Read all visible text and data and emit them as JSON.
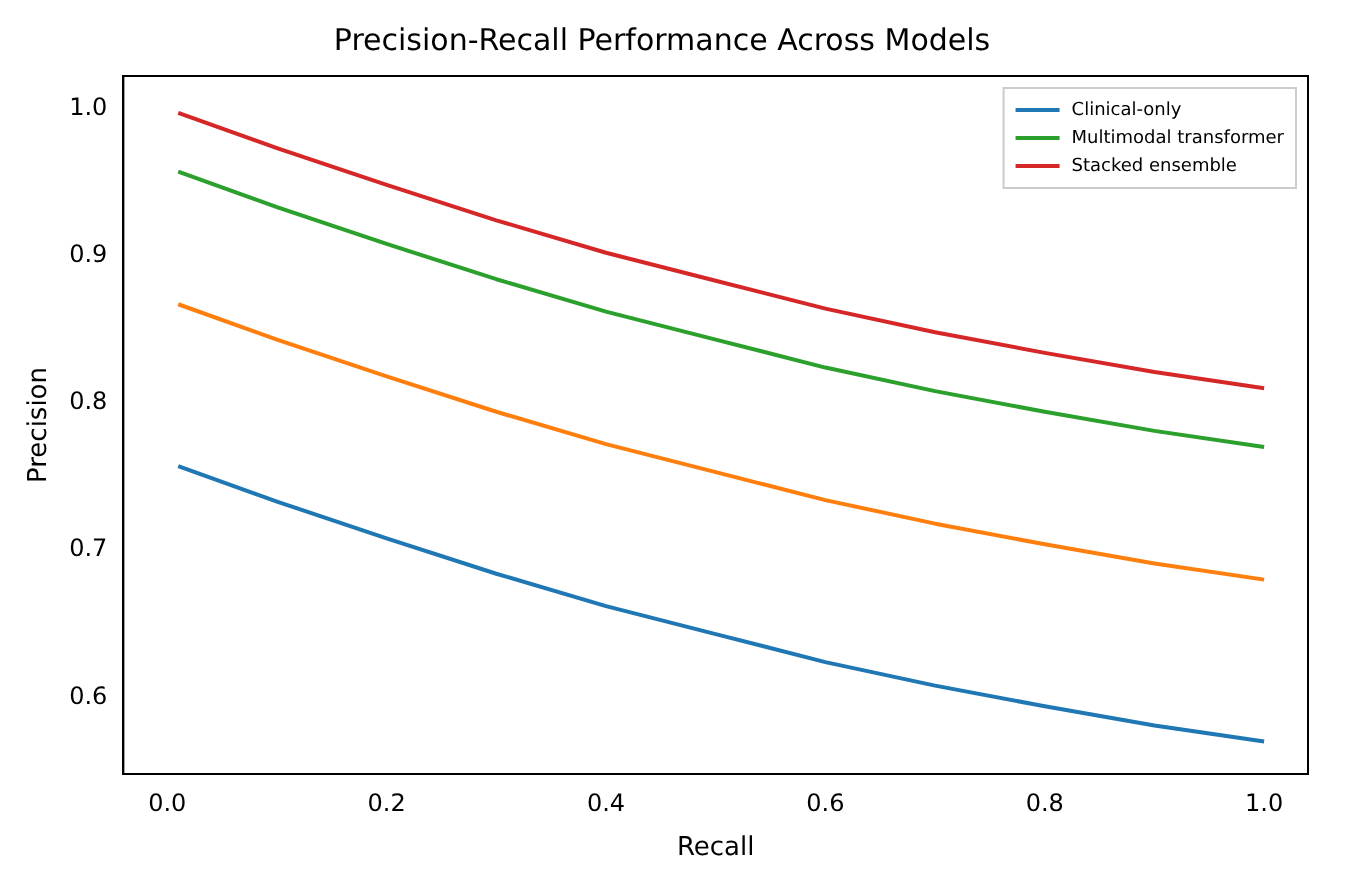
{
  "chart_data": {
    "type": "line",
    "title": "Precision-Recall Performance Across Models",
    "xlabel": "Recall",
    "ylabel": "Precision",
    "x": [
      0.01,
      0.1,
      0.2,
      0.3,
      0.4,
      0.5,
      0.6,
      0.7,
      0.8,
      0.9,
      1.0
    ],
    "series": [
      {
        "name": "Clinical-only",
        "color": "#1f77b4",
        "values": [
          0.757,
          0.733,
          0.708,
          0.684,
          0.662,
          0.643,
          0.624,
          0.608,
          0.594,
          0.581,
          0.57
        ]
      },
      {
        "color": "#ff7f0e",
        "values": [
          0.867,
          0.843,
          0.818,
          0.794,
          0.772,
          0.753,
          0.734,
          0.718,
          0.704,
          0.691,
          0.68
        ]
      },
      {
        "name": "Multimodal transformer",
        "color": "#2ca02c",
        "values": [
          0.957,
          0.933,
          0.908,
          0.884,
          0.862,
          0.843,
          0.824,
          0.808,
          0.794,
          0.781,
          0.77
        ]
      },
      {
        "name": "Stacked ensemble",
        "color": "#d62728",
        "values": [
          0.997,
          0.973,
          0.948,
          0.924,
          0.902,
          0.883,
          0.864,
          0.848,
          0.834,
          0.821,
          0.81
        ]
      }
    ],
    "xlim": [
      -0.04,
      1.04
    ],
    "xticks": [
      {
        "value": 0,
        "label": "0.0"
      },
      {
        "value": 0.2,
        "label": "0.2"
      },
      {
        "value": 0.4,
        "label": "0.4"
      },
      {
        "value": 0.6,
        "label": "0.6"
      },
      {
        "value": 0.8,
        "label": "0.8"
      },
      {
        "value": 1.0,
        "label": "1.0"
      }
    ],
    "ylim": [
      0.548,
      1.022
    ],
    "yticks": [
      {
        "value": 0.6,
        "label": "0.6"
      },
      {
        "value": 0.7,
        "label": "0.7"
      },
      {
        "value": 0.8,
        "label": "0.8"
      },
      {
        "value": 0.9,
        "label": "0.9"
      },
      {
        "value": 1.0,
        "label": "1.0"
      }
    ],
    "grid": false,
    "legend": "top right",
    "marker": "none",
    "line_style": "solid"
  }
}
